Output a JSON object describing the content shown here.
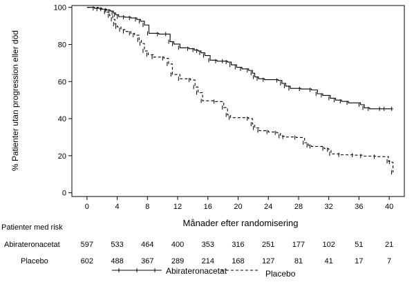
{
  "chart_data": {
    "type": "line",
    "title": "",
    "xlabel": "Månader efter randomisering",
    "ylabel": "% Patienter utan progression eller död",
    "xlim": [
      -2,
      42
    ],
    "ylim": [
      -2,
      101
    ],
    "x_ticks": [
      0,
      4,
      8,
      12,
      16,
      20,
      24,
      28,
      32,
      36,
      40
    ],
    "y_ticks": [
      0,
      20,
      40,
      60,
      80,
      100
    ],
    "grid": false,
    "series": [
      {
        "name": "Abirateronacetat",
        "line_style": "solid",
        "color": "#000000",
        "x": [
          0,
          1,
          2,
          2.6,
          3.1,
          3.5,
          3.8,
          4.2,
          5,
          5.8,
          6.6,
          7.1,
          7.6,
          8.2,
          9.5,
          10.6,
          11,
          11.5,
          12.3,
          13.5,
          14.2,
          14.7,
          15.1,
          15.6,
          16.3,
          17.2,
          18.1,
          18.6,
          19.1,
          19.8,
          20.5,
          21.4,
          21.9,
          22.2,
          22.7,
          23.5,
          25.3,
          25.8,
          26.3,
          26.9,
          28.3,
          29.7,
          30.5,
          31.2,
          32.2,
          32.9,
          33.7,
          34.6,
          36.2,
          36.7,
          37.4,
          38.9,
          39.5,
          40.5
        ],
        "values": [
          100,
          99.5,
          99,
          98.5,
          98,
          97,
          96,
          95,
          94.7,
          94.3,
          93.5,
          92.5,
          90.5,
          86,
          85.6,
          85.6,
          81.5,
          80.2,
          78.2,
          77.7,
          77,
          76.5,
          75.5,
          74,
          71.5,
          71,
          71,
          70.5,
          69,
          67.7,
          66.8,
          66,
          64.5,
          62.5,
          61.5,
          61,
          60.6,
          59,
          57.5,
          56.3,
          56,
          55.5,
          53.4,
          52.5,
          51,
          50,
          49.3,
          48.5,
          47.5,
          45.8,
          45.3,
          45.3,
          45.3,
          45.3
        ]
      },
      {
        "name": "Placebo",
        "line_style": "dashed",
        "color": "#000000",
        "x": [
          0,
          1.5,
          2.5,
          3,
          3.4,
          3.7,
          4,
          4.5,
          5,
          5.8,
          6.3,
          6.9,
          7.2,
          7.6,
          8.1,
          8.8,
          10.2,
          10.8,
          11.3,
          12.3,
          13.7,
          14.3,
          14.7,
          15.3,
          17,
          18.1,
          18.6,
          19,
          21.4,
          21.9,
          22.2,
          22.8,
          24,
          25.1,
          25.6,
          26.1,
          27.7,
          28.8,
          29.3,
          29.7,
          31.4,
          32,
          32.3,
          33.5,
          35.3,
          36.4,
          38.2,
          39.9,
          40.2,
          40.5
        ],
        "values": [
          100,
          99,
          97.5,
          95.5,
          93.5,
          91,
          89.5,
          88,
          87,
          86,
          85,
          82.5,
          80.5,
          76.5,
          74.5,
          73.2,
          72.5,
          69.5,
          63.8,
          61.5,
          60.8,
          57,
          54,
          49.6,
          49.2,
          46,
          42,
          40.5,
          40,
          37,
          35,
          33.5,
          32.8,
          32.3,
          30.5,
          30.1,
          29.8,
          27,
          25.5,
          25,
          23.8,
          23.2,
          21,
          20.5,
          20.3,
          19.8,
          19.5,
          17,
          16.5,
          11
        ]
      }
    ],
    "risk_table": {
      "header": "Patienter med risk",
      "times": [
        0,
        4,
        8,
        12,
        16,
        20,
        24,
        28,
        32,
        36,
        40
      ],
      "rows": [
        {
          "label": "Abirateronacetat",
          "counts": [
            "597",
            "533",
            "464",
            "400",
            "353",
            "316",
            "251",
            "177",
            "102",
            "51",
            "21"
          ]
        },
        {
          "label": "Placebo",
          "counts": [
            "602",
            "488",
            "367",
            "289",
            "214",
            "168",
            "127",
            "81",
            "41",
            "17",
            "7"
          ]
        }
      ]
    },
    "legend": {
      "placement": "bottom",
      "entries": [
        {
          "label": "Abirateronacetat",
          "line_style": "solid"
        },
        {
          "label": "Placebo",
          "line_style": "dashed"
        }
      ]
    }
  }
}
